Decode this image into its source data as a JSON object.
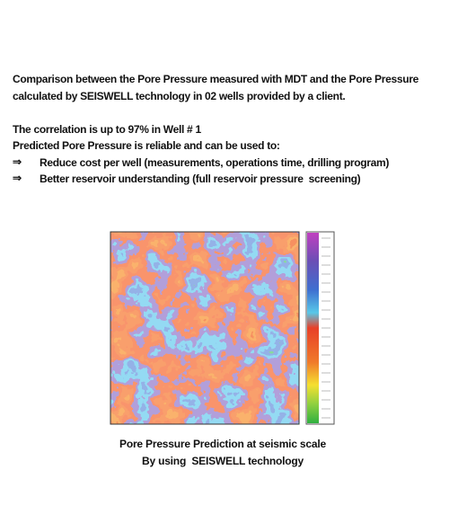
{
  "intro": {
    "lines": [
      "Comparison between the Pore Pressure measured with MDT and the Pore Pressure",
      "calculated by SEISWELL technology in 02 wells provided by a client."
    ]
  },
  "correlation": "The correlation is up to 97% in Well # 1",
  "reliability": "Predicted Pore Pressure is reliable and can be used to:",
  "bullets": [
    {
      "marker": "⇒",
      "text": "Reduce cost per well (measurements, operations time, drilling program)"
    },
    {
      "marker": "⇒",
      "text": "Better reservoir understanding (full reservoir pressure  screening)"
    }
  ],
  "caption": {
    "lines": [
      "Pore Pressure Prediction at seismic scale",
      "By using  SEISWELL technology"
    ]
  }
}
